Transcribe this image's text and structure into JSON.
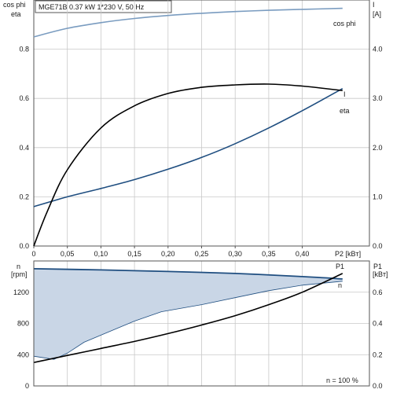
{
  "header_text": "MGE71B   0.37 kW    1*230 V, 50 Hz",
  "colors": {
    "cos_phi": "#7a9cc0",
    "current": "#1f4e80",
    "efficiency": "#000000",
    "speed": "#1f4e80",
    "speed_area": "#c9d6e6",
    "power": "#000000",
    "grid": "#c8c8c8"
  },
  "chart_data": [
    {
      "type": "line",
      "panel": "top",
      "ylabel_left": [
        "cos phi",
        "eta"
      ],
      "ylabel_right": [
        "I",
        "[A]"
      ],
      "xlabel": "P2 [kBт]",
      "xlim": [
        0,
        0.5
      ],
      "ylim_left": [
        0,
        1.0
      ],
      "ylim_right": [
        0,
        5.0
      ],
      "x_ticks": [
        "0",
        "0,05",
        "0,10",
        "0,15",
        "0,20",
        "0,25",
        "0,30",
        "0,35",
        "0,40"
      ],
      "y_ticks_left": [
        "0.0",
        "0.2",
        "0.4",
        "0.6",
        "0.8"
      ],
      "y_ticks_right": [
        "0.0",
        "1.0",
        "2.0",
        "3.0",
        "4.0"
      ],
      "grid": true,
      "series": [
        {
          "name": "cos phi",
          "axis": "left",
          "x": [
            0,
            0.05,
            0.1,
            0.15,
            0.2,
            0.25,
            0.3,
            0.35,
            0.4,
            0.46
          ],
          "y": [
            0.85,
            0.885,
            0.908,
            0.925,
            0.937,
            0.946,
            0.953,
            0.958,
            0.962,
            0.966
          ]
        },
        {
          "name": "I",
          "axis": "right",
          "x": [
            0,
            0.05,
            0.1,
            0.15,
            0.2,
            0.25,
            0.3,
            0.35,
            0.4,
            0.46
          ],
          "y": [
            0.8,
            1.0,
            1.17,
            1.35,
            1.56,
            1.8,
            2.08,
            2.4,
            2.75,
            3.2
          ]
        },
        {
          "name": "eta",
          "axis": "left",
          "x": [
            0,
            0.02,
            0.05,
            0.1,
            0.15,
            0.2,
            0.25,
            0.3,
            0.35,
            0.4,
            0.46
          ],
          "y": [
            0.0,
            0.14,
            0.31,
            0.48,
            0.57,
            0.62,
            0.645,
            0.655,
            0.658,
            0.65,
            0.632
          ]
        }
      ]
    },
    {
      "type": "line",
      "panel": "bottom",
      "ylabel_left": [
        "n",
        "[rpm]"
      ],
      "ylabel_right": [
        "P1",
        "[kBт]"
      ],
      "xlim": [
        0,
        0.5
      ],
      "ylim_left": [
        0,
        1600
      ],
      "ylim_right": [
        0,
        0.8
      ],
      "y_ticks_left": [
        "0",
        "400",
        "800",
        "1200"
      ],
      "y_ticks_right": [
        "0.0",
        "0.2",
        "0.4",
        "0.6"
      ],
      "grid": true,
      "annotation": "n = 100 %",
      "series": [
        {
          "name": "n",
          "axis": "left",
          "upper_x": [
            0,
            0.1,
            0.2,
            0.3,
            0.4,
            0.46
          ],
          "upper_y": [
            1500,
            1485,
            1465,
            1440,
            1400,
            1370
          ],
          "lower_x": [
            0,
            0.03,
            0.05,
            0.075,
            0.1,
            0.15,
            0.19,
            0.25,
            0.3,
            0.35,
            0.4,
            0.46
          ],
          "lower_y": [
            380,
            340,
            420,
            560,
            650,
            830,
            950,
            1040,
            1130,
            1220,
            1290,
            1340
          ]
        },
        {
          "name": "P1",
          "axis": "right",
          "x": [
            0,
            0.05,
            0.1,
            0.15,
            0.2,
            0.25,
            0.3,
            0.35,
            0.4,
            0.46
          ],
          "y": [
            0.15,
            0.195,
            0.24,
            0.285,
            0.335,
            0.39,
            0.45,
            0.52,
            0.6,
            0.72
          ]
        }
      ]
    }
  ]
}
